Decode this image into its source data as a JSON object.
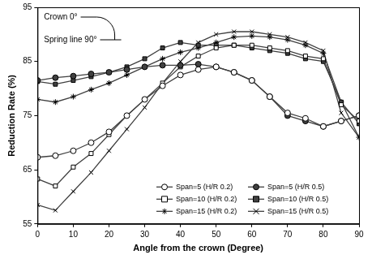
{
  "chart_data": {
    "type": "line",
    "x_label": "Angle from the crown (Degree)",
    "y_label": "Reduction Rate (%)",
    "annotations": [
      "Crown 0°",
      "Spring line 90°"
    ],
    "x": [
      0,
      5,
      10,
      15,
      20,
      25,
      30,
      35,
      40,
      45,
      50,
      55,
      60,
      65,
      70,
      75,
      80,
      85,
      90
    ],
    "xlim": [
      0,
      90
    ],
    "xticks": [
      0,
      10,
      20,
      30,
      40,
      50,
      60,
      70,
      80,
      90
    ],
    "ylim": [
      55,
      95
    ],
    "yticks": [
      55,
      65,
      75,
      85,
      95
    ],
    "grid": false,
    "legend": "bottom",
    "series": [
      {
        "name": "Span=5 (H/R 0.2)",
        "color": "#404040",
        "marker": "open_circle",
        "values": [
          67.3,
          67.6,
          68.5,
          70,
          72,
          75,
          78,
          80.5,
          82.5,
          83.5,
          84,
          83,
          81.5,
          78.5,
          75.5,
          74.5,
          73,
          74,
          75
        ]
      },
      {
        "name": "Span=5 (H/R 0.5)",
        "color": "#404040",
        "marker": "filled_circle",
        "values": [
          81.5,
          82,
          82.3,
          82.7,
          83,
          83.5,
          84,
          84.3,
          84.3,
          84.5,
          84,
          83,
          81.5,
          78.5,
          75,
          74,
          73,
          74,
          75
        ]
      },
      {
        "name": "Span=10 (H/R 0.2)",
        "color": "#404040",
        "marker": "open_square",
        "values": [
          63.3,
          62,
          65.5,
          68,
          71.5,
          75,
          78,
          81,
          84,
          86,
          87.5,
          88,
          88,
          87.5,
          87,
          86,
          85.5,
          77,
          74
        ]
      },
      {
        "name": "Span=10 (H/R 0.5)",
        "color": "#404040",
        "marker": "filled_square",
        "values": [
          81.3,
          80.8,
          81.5,
          82.2,
          83,
          84,
          85.5,
          87.5,
          88.5,
          88,
          88,
          88,
          87.5,
          87,
          86.5,
          85.5,
          85,
          77.5,
          73.5
        ]
      },
      {
        "name": "Span=15 (H/R 0.2)",
        "color": "#404040",
        "marker": "star",
        "values": [
          78,
          77.5,
          78.5,
          79.8,
          81,
          82.5,
          84,
          85.5,
          86.7,
          87.5,
          88.5,
          89.5,
          89.7,
          89.5,
          89,
          88,
          86.5,
          77.5,
          71
        ]
      },
      {
        "name": "Span=15 (H/R 0.5)",
        "color": "#404040",
        "marker": "cross",
        "values": [
          58.5,
          57.5,
          61,
          64.5,
          68.5,
          72.5,
          76.5,
          81,
          85,
          88.5,
          90,
          90.5,
          90.5,
          90,
          89.5,
          88.5,
          87,
          75.5,
          71
        ]
      }
    ]
  }
}
